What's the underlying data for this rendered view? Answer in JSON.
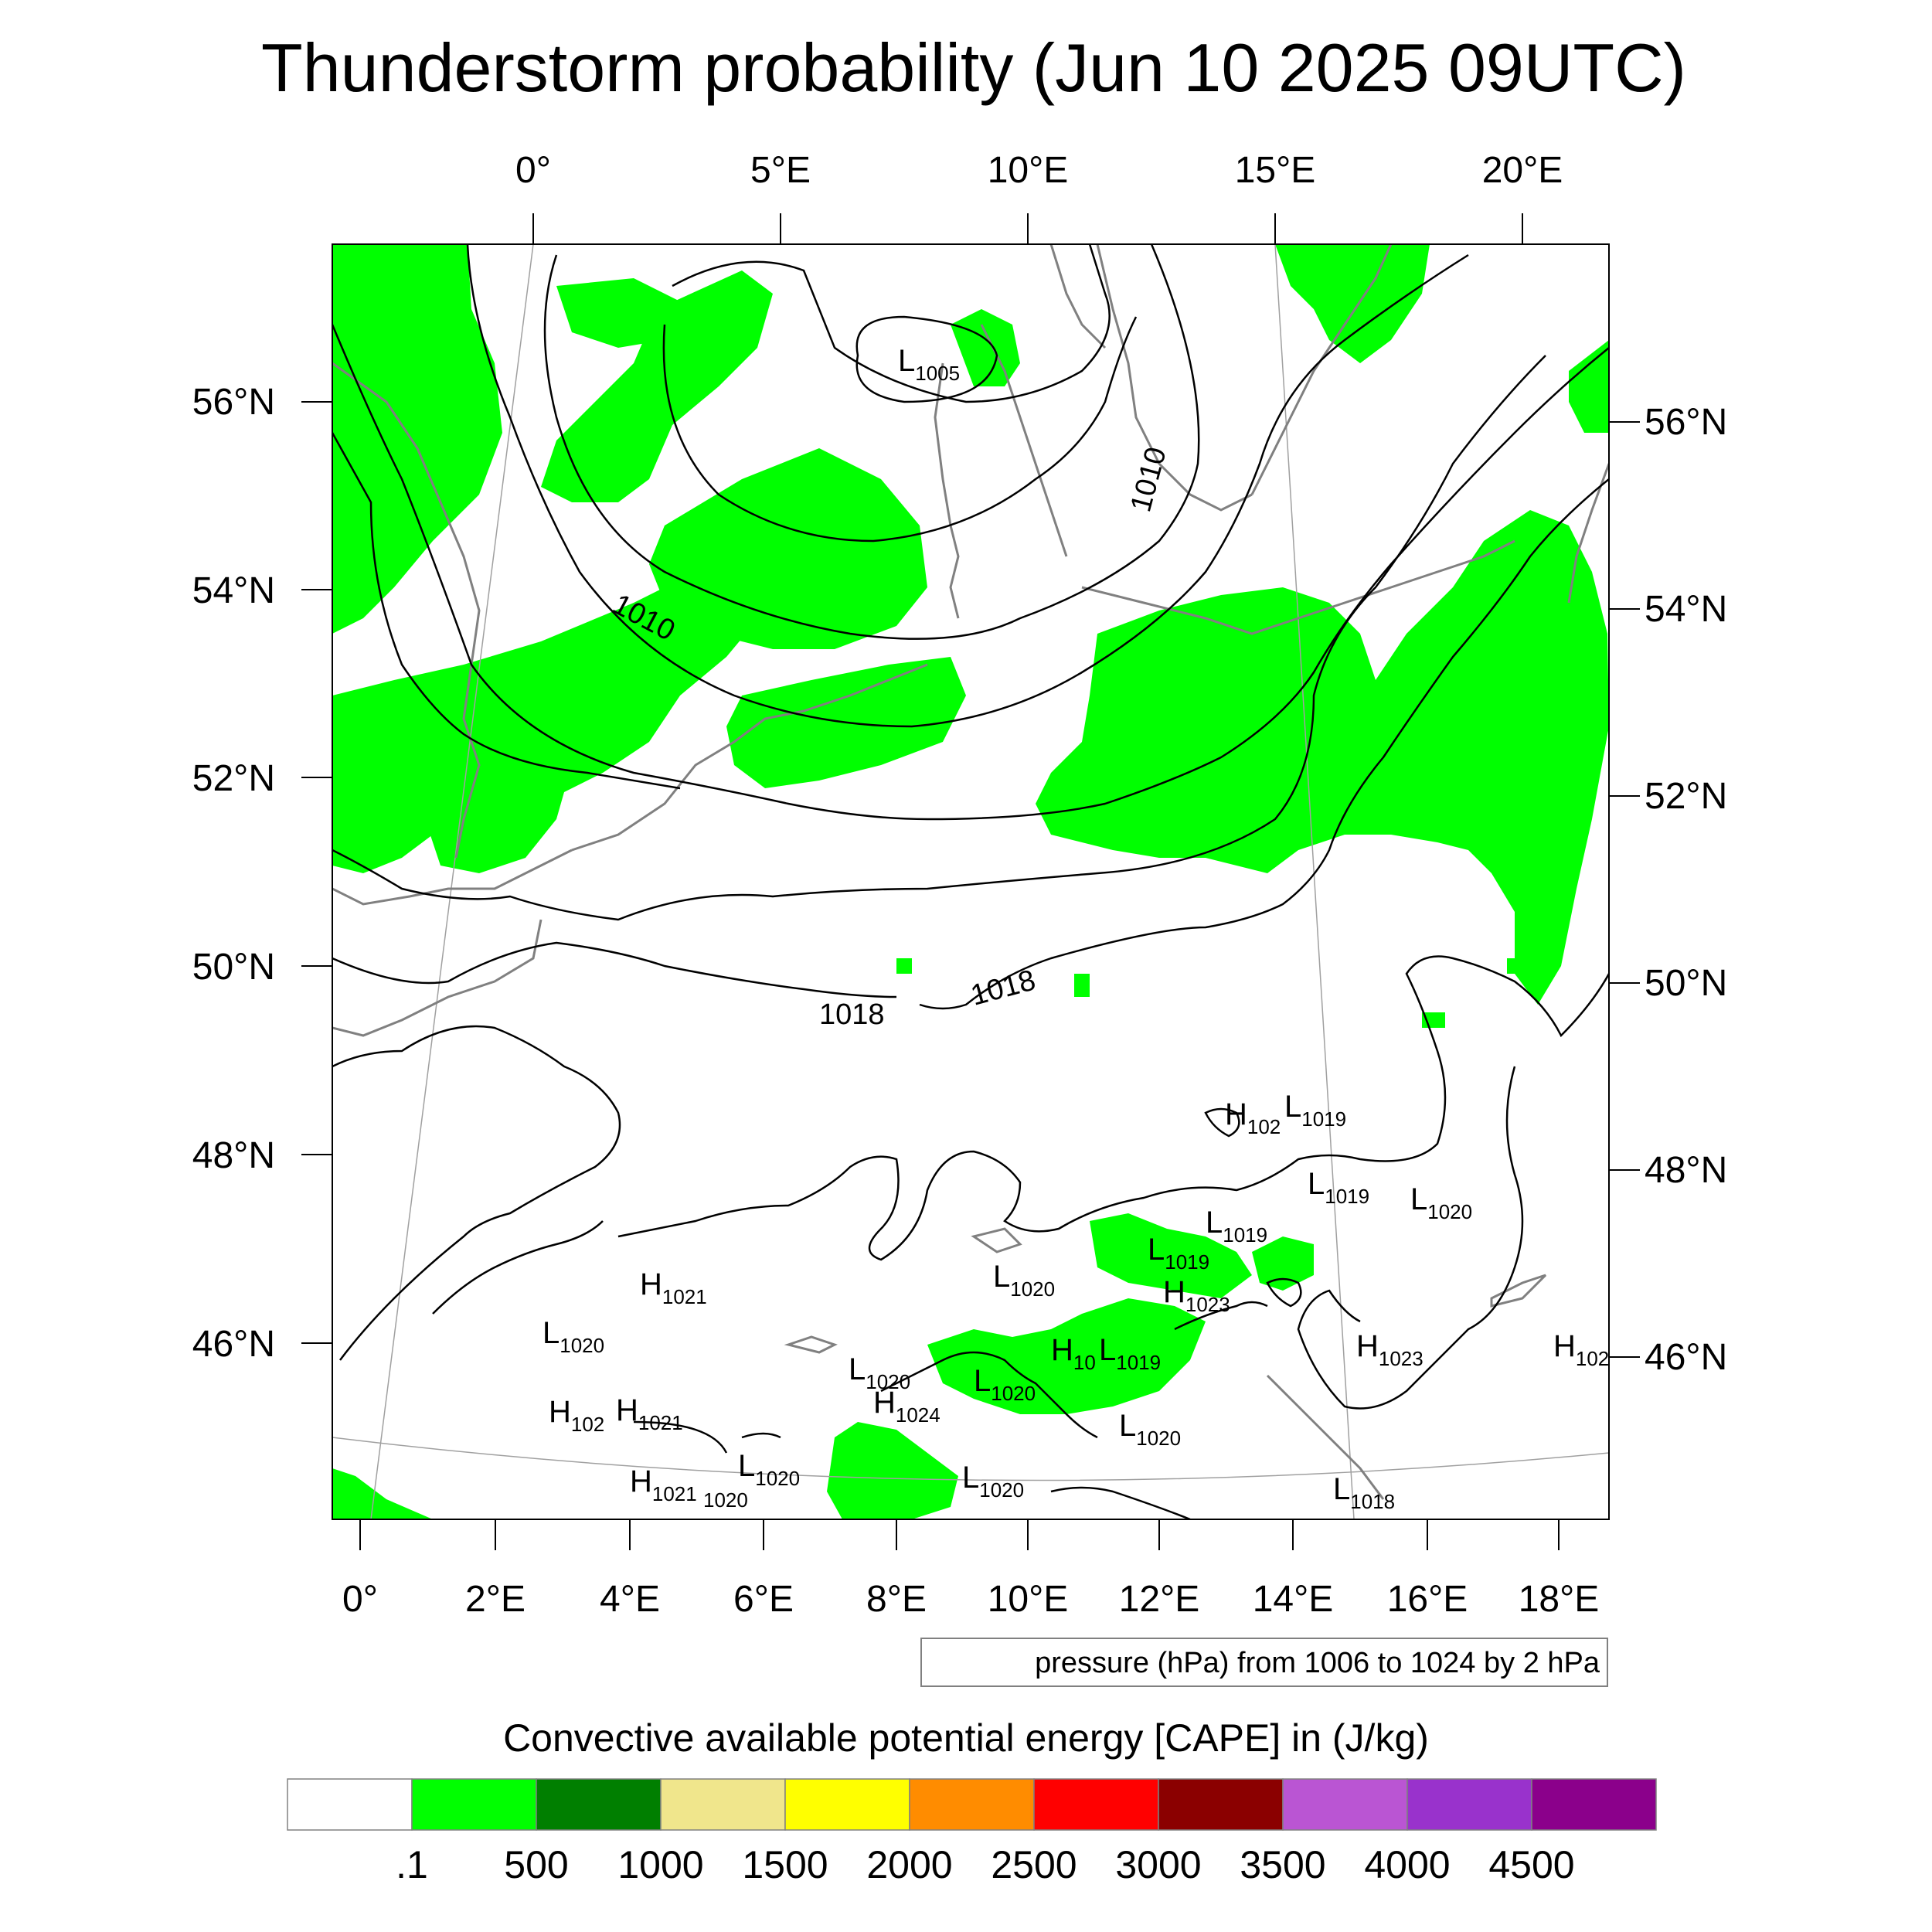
{
  "title": "Thunderstorm probability (Jun 10 2025 09UTC)",
  "top_axis_labels": [
    "0°",
    "5°E",
    "10°E",
    "15°E",
    "20°E"
  ],
  "bottom_axis_labels": [
    "0°",
    "2°E",
    "4°E",
    "6°E",
    "8°E",
    "10°E",
    "12°E",
    "14°E",
    "16°E",
    "18°E"
  ],
  "left_axis_labels": [
    "56°N",
    "54°N",
    "52°N",
    "50°N",
    "48°N",
    "46°N"
  ],
  "right_axis_labels": [
    "56°N",
    "54°N",
    "52°N",
    "50°N",
    "48°N",
    "46°N"
  ],
  "isobar_labels": [
    "1010",
    "1010",
    "1018",
    "1018"
  ],
  "pressure_systems": [
    {
      "letter": "L",
      "value": "1005"
    },
    {
      "letter": "H",
      "value": "102"
    },
    {
      "letter": "L",
      "value": "1019"
    },
    {
      "letter": "L",
      "value": "1019"
    },
    {
      "letter": "L",
      "value": "1020"
    },
    {
      "letter": "L",
      "value": "1019"
    },
    {
      "letter": "L",
      "value": "1019"
    },
    {
      "letter": "L",
      "value": "1020"
    },
    {
      "letter": "H",
      "value": "1023"
    },
    {
      "letter": "H",
      "value": "1021"
    },
    {
      "letter": "L",
      "value": "1020"
    },
    {
      "letter": "H",
      "value": "1023"
    },
    {
      "letter": "H",
      "value": "102"
    },
    {
      "letter": "H",
      "value": "10"
    },
    {
      "letter": "L",
      "value": "1019"
    },
    {
      "letter": "L",
      "value": "1020"
    },
    {
      "letter": "L",
      "value": "1020"
    },
    {
      "letter": "H",
      "value": "102"
    },
    {
      "letter": "H",
      "value": "1021"
    },
    {
      "letter": "H",
      "value": "1024"
    },
    {
      "letter": "L",
      "value": "1020"
    },
    {
      "letter": "L",
      "value": "1020"
    },
    {
      "letter": "H",
      "value": "1021"
    },
    {
      "letter": "",
      "value": "1020"
    },
    {
      "letter": "L",
      "value": "1020"
    },
    {
      "letter": "L",
      "value": "1018"
    }
  ],
  "contour_note": "pressure (hPa) from 1006 to 1024 by 2 hPa",
  "colorbar": {
    "title": "Convective available potential energy [CAPE] in (J/kg)",
    "colors": [
      "#ffffff",
      "#00ff00",
      "#007f00",
      "#f0e68c",
      "#ffff00",
      "#ff8c00",
      "#ff0000",
      "#8b0000",
      "#ba55d3",
      "#9932cc",
      "#8b008b"
    ],
    "labels": [
      ".1",
      "500",
      "1000",
      "1500",
      "2000",
      "2500",
      "3000",
      "3500",
      "4000",
      "4500"
    ]
  },
  "colors": {
    "cape_fill": "#00ff00",
    "coastline": "#808080",
    "isobar": "#000000",
    "graticule": "#a0a0a0"
  }
}
